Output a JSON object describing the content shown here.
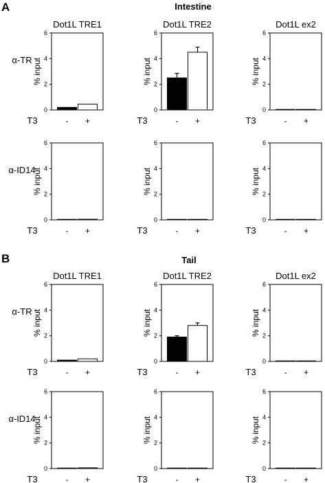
{
  "figure": {
    "panels": [
      {
        "letter": "A",
        "title": "Intestine"
      },
      {
        "letter": "B",
        "title": "Tail"
      }
    ]
  },
  "colors": {
    "minus_fill": "#000000",
    "plus_fill": "#ffffff",
    "axis": "#000000"
  },
  "chart_data": [
    {
      "type": "bar",
      "panel": "A",
      "section": "Intestine",
      "title": "Dot1L TRE1",
      "row_label": "α-TR",
      "ylabel": "% input",
      "ylim": [
        0,
        6
      ],
      "yticks": [
        0,
        2,
        4,
        6
      ],
      "xlabel": "T3",
      "categories": [
        "-",
        "+"
      ],
      "values": [
        0.2,
        0.45
      ],
      "errors": [
        0.0,
        0.0
      ]
    },
    {
      "type": "bar",
      "panel": "A",
      "section": "Intestine",
      "title": "Dot1L TRE2",
      "row_label": "α-TR",
      "ylabel": "% input",
      "ylim": [
        0,
        6
      ],
      "yticks": [
        0,
        2,
        4,
        6
      ],
      "xlabel": "T3",
      "categories": [
        "-",
        "+"
      ],
      "values": [
        2.5,
        4.5
      ],
      "errors": [
        0.35,
        0.4
      ]
    },
    {
      "type": "bar",
      "panel": "A",
      "section": "Intestine",
      "title": "Dot1L ex2",
      "row_label": "α-TR",
      "ylabel": "% input",
      "ylim": [
        0,
        6
      ],
      "yticks": [
        0,
        2,
        4,
        6
      ],
      "xlabel": "T3",
      "categories": [
        "-",
        "+"
      ],
      "values": [
        0.01,
        0.01
      ],
      "errors": [
        0,
        0
      ]
    },
    {
      "type": "bar",
      "panel": "A",
      "section": "Intestine",
      "title": "",
      "row_label": "α-ID14",
      "ylabel": "% input",
      "ylim": [
        0,
        6
      ],
      "yticks": [
        0,
        2,
        4,
        6
      ],
      "xlabel": "T3",
      "categories": [
        "-",
        "+"
      ],
      "values": [
        0.03,
        0.05
      ],
      "errors": [
        0,
        0
      ]
    },
    {
      "type": "bar",
      "panel": "A",
      "section": "Intestine",
      "title": "",
      "row_label": "α-ID14",
      "ylabel": "% input",
      "ylim": [
        0,
        6
      ],
      "yticks": [
        0,
        2,
        4,
        6
      ],
      "xlabel": "T3",
      "categories": [
        "-",
        "+"
      ],
      "values": [
        0.02,
        0.02
      ],
      "errors": [
        0,
        0
      ]
    },
    {
      "type": "bar",
      "panel": "A",
      "section": "Intestine",
      "title": "",
      "row_label": "α-ID14",
      "ylabel": "% input",
      "ylim": [
        0,
        6
      ],
      "yticks": [
        0,
        2,
        4,
        6
      ],
      "xlabel": "T3",
      "categories": [
        "-",
        "+"
      ],
      "values": [
        0.02,
        0.02
      ],
      "errors": [
        0,
        0
      ]
    },
    {
      "type": "bar",
      "panel": "B",
      "section": "Tail",
      "title": "Dot1L TRE1",
      "row_label": "α-TR",
      "ylabel": "% input",
      "ylim": [
        0,
        6
      ],
      "yticks": [
        0,
        2,
        4,
        6
      ],
      "xlabel": "T3",
      "categories": [
        "-",
        "+"
      ],
      "values": [
        0.1,
        0.2
      ],
      "errors": [
        0,
        0
      ]
    },
    {
      "type": "bar",
      "panel": "B",
      "section": "Tail",
      "title": "Dot1L TRE2",
      "row_label": "α-TR",
      "ylabel": "% input",
      "ylim": [
        0,
        6
      ],
      "yticks": [
        0,
        2,
        4,
        6
      ],
      "xlabel": "T3",
      "categories": [
        "-",
        "+"
      ],
      "values": [
        1.9,
        2.8
      ],
      "errors": [
        0.1,
        0.2
      ]
    },
    {
      "type": "bar",
      "panel": "B",
      "section": "Tail",
      "title": "Dot1L ex2",
      "row_label": "α-TR",
      "ylabel": "% input",
      "ylim": [
        0,
        6
      ],
      "yticks": [
        0,
        2,
        4,
        6
      ],
      "xlabel": "T3",
      "categories": [
        "-",
        "+"
      ],
      "values": [
        0.01,
        0.02
      ],
      "errors": [
        0,
        0
      ]
    },
    {
      "type": "bar",
      "panel": "B",
      "section": "Tail",
      "title": "",
      "row_label": "α-ID14",
      "ylabel": "% input",
      "ylim": [
        0,
        6
      ],
      "yticks": [
        0,
        2,
        4,
        6
      ],
      "xlabel": "T3",
      "categories": [
        "-",
        "+"
      ],
      "values": [
        0.03,
        0.06
      ],
      "errors": [
        0,
        0
      ]
    },
    {
      "type": "bar",
      "panel": "B",
      "section": "Tail",
      "title": "",
      "row_label": "α-ID14",
      "ylabel": "% input",
      "ylim": [
        0,
        6
      ],
      "yticks": [
        0,
        2,
        4,
        6
      ],
      "xlabel": "T3",
      "categories": [
        "-",
        "+"
      ],
      "values": [
        0.02,
        0.02
      ],
      "errors": [
        0,
        0
      ]
    },
    {
      "type": "bar",
      "panel": "B",
      "section": "Tail",
      "title": "",
      "row_label": "α-ID14",
      "ylabel": "% input",
      "ylim": [
        0,
        6
      ],
      "yticks": [
        0,
        2,
        4,
        6
      ],
      "xlabel": "T3",
      "categories": [
        "-",
        "+"
      ],
      "values": [
        0.01,
        0.01
      ],
      "errors": [
        0,
        0
      ]
    }
  ]
}
